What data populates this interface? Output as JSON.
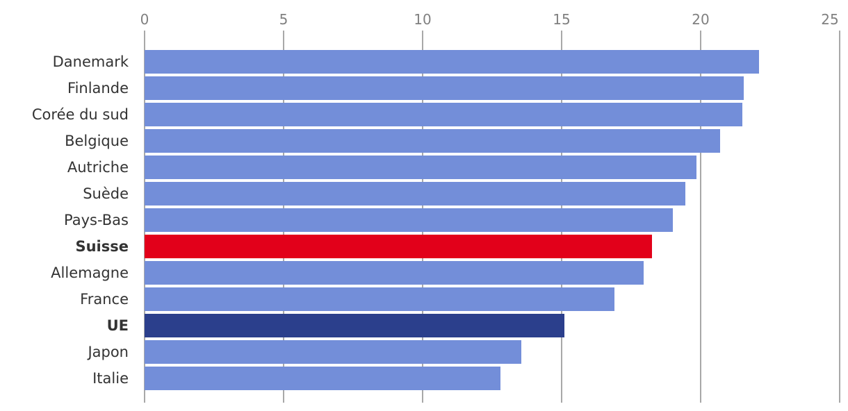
{
  "chart_data": {
    "type": "bar",
    "orientation": "horizontal",
    "categories": [
      "Danemark",
      "Finlande",
      "Corée du sud",
      "Belgique",
      "Autriche",
      "Suède",
      "Pays-Bas",
      "Suisse",
      "Allemagne",
      "France",
      "UE",
      "Japon",
      "Italie"
    ],
    "values": [
      22.1,
      21.55,
      21.5,
      20.7,
      19.85,
      19.45,
      19.0,
      18.25,
      17.95,
      16.9,
      15.1,
      13.55,
      12.8
    ],
    "highlight": {
      "Suisse": "#e2001a",
      "UE": "#2b3f8c"
    },
    "bold_categories": [
      "Suisse",
      "UE"
    ],
    "default_color": "#738ed9",
    "xlim": [
      0,
      25
    ],
    "xticks": [
      0,
      5,
      10,
      15,
      20,
      25
    ],
    "xaxis_position": "top",
    "grid": true,
    "title": "",
    "xlabel": "",
    "ylabel": ""
  }
}
